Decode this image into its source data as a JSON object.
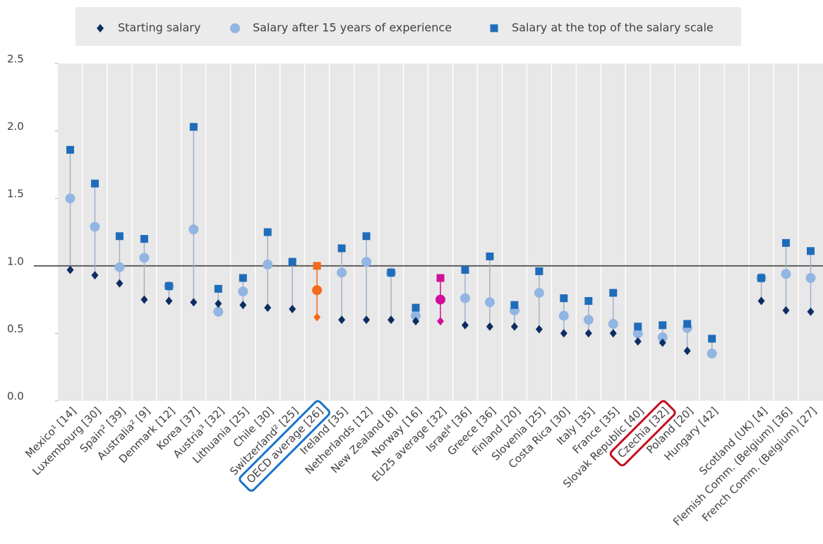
{
  "chart_data": {
    "type": "dot-range",
    "categories": [
      "Mexico¹ [14]",
      "Luxembourg [30]",
      "Spain² [39]",
      "Australia² [9]",
      "Denmark [12]",
      "Korea [37]",
      "Austria³ [32]",
      "Lithuania [25]",
      "Chile [30]",
      "Switzerland² [25]",
      "OECD average [26]",
      "Ireland [35]",
      "Netherlands [12]",
      "New Zealand [8]",
      "Norway [16]",
      "EU25 average [32]",
      "Israel⁴ [36]",
      "Greece [36]",
      "Finland [20]",
      "Slovenia [25]",
      "Costa Rica [30]",
      "Italy [35]",
      "France [35]",
      "Slovak Republic [40]",
      "Czechia [32]",
      "Poland [20]",
      "Hungary [42]",
      null,
      "Scotland (UK) [4]",
      "Flemish Comm. (Belgium) [36]",
      "French Comm. (Belgium) [27]"
    ],
    "series": [
      {
        "name": "Starting salary",
        "color": "#0d2d62",
        "marker": "diamond",
        "values": [
          0.97,
          0.93,
          0.87,
          0.75,
          0.74,
          0.73,
          0.72,
          0.71,
          0.69,
          0.68,
          0.62,
          0.6,
          0.6,
          0.6,
          0.59,
          0.59,
          0.56,
          0.55,
          0.55,
          0.53,
          0.5,
          0.5,
          0.5,
          0.44,
          0.43,
          0.37,
          null,
          null,
          0.74,
          0.67,
          0.66
        ]
      },
      {
        "name": "Salary after 15 years of experience",
        "color": "#92b5e2",
        "marker": "circle",
        "values": [
          1.5,
          1.29,
          0.99,
          1.06,
          0.85,
          1.27,
          0.66,
          0.81,
          1.01,
          null,
          0.82,
          0.95,
          1.03,
          0.95,
          0.63,
          0.75,
          0.76,
          0.73,
          0.67,
          0.8,
          0.63,
          0.6,
          0.57,
          0.5,
          0.47,
          0.54,
          0.35,
          null,
          0.91,
          0.94,
          0.91
        ]
      },
      {
        "name": "Salary at the top of the salary scale",
        "color": "#1f6cbb",
        "marker": "square",
        "values": [
          1.86,
          1.61,
          1.22,
          1.2,
          0.85,
          2.03,
          0.83,
          0.91,
          1.25,
          1.03,
          1.0,
          1.13,
          1.22,
          0.95,
          0.69,
          0.91,
          0.97,
          1.07,
          0.71,
          0.96,
          0.76,
          0.74,
          0.8,
          0.55,
          0.56,
          0.57,
          0.46,
          null,
          0.91,
          1.17,
          1.11
        ]
      }
    ],
    "ylim": [
      0,
      2.5
    ],
    "yticks": [
      {
        "value": 0,
        "label": "0.0"
      },
      0.5,
      {
        "value": 1,
        "label": "1.0"
      },
      1.5,
      {
        "value": 2,
        "label": "2.0"
      },
      2.5
    ],
    "reference_line": 1,
    "stem_color": "#9fb3c9",
    "highlights": [
      {
        "index": 10,
        "color": "#f26a1b"
      },
      {
        "index": 15,
        "color": "#d10f9a"
      }
    ],
    "boxed_labels": [
      {
        "index": 10,
        "color": "#1a74c7"
      },
      {
        "index": 24,
        "color": "#c0121c"
      }
    ],
    "legend": "top"
  }
}
